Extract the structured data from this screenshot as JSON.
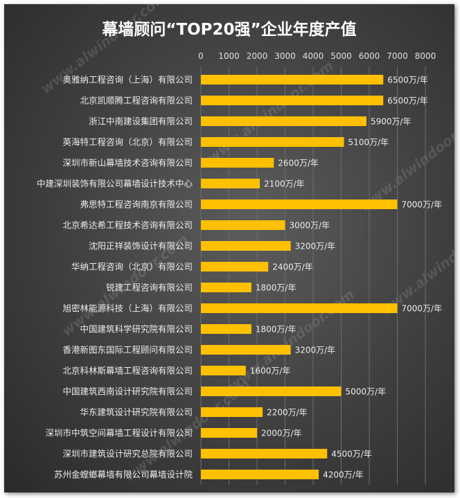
{
  "watermark": "www.alwindoor.com",
  "chart_data": {
    "type": "bar",
    "orientation": "horizontal",
    "title": "幕墙顾问“TOP20强”企业年度产值",
    "xlim": [
      0,
      8000
    ],
    "xticks": [
      0,
      1000,
      2000,
      3000,
      4000,
      5000,
      6000,
      7000,
      8000
    ],
    "grid": true,
    "bar_color": "#ffc000",
    "unit_suffix": "万/年",
    "categories": [
      "奥雅纳工程咨询（上海）有限公司",
      "北京凯顺腾工程咨询有限公司",
      "浙江中南建设集团有限公司",
      "英海特工程咨询（北京）有限公司",
      "深圳市新山幕墙技术咨询有限公司",
      "中建深圳装饰有限公司幕墙设计技术中心",
      "弗思特工程咨询南京有限公司",
      "北京希达希工程技术咨询有限公司",
      "沈阳正祥装饰设计有限公司",
      "华纳工程咨询（北京）有限公司",
      "锐建工程咨询有限公司",
      "旭密林能源科技（上海）有限公司",
      "中国建筑科学研究院有限公司",
      "香港新图东国际工程顾问有限公司",
      "北京科林斯幕墙工程咨询有限公司",
      "中国建筑西南设计研究院有限公司",
      "华东建筑设计研究院有限公司",
      "深圳市中筑空间幕墙工程设计有限公司",
      "深圳市建筑设计研究总院有限公司",
      "苏州金螳螂幕墙有限公司幕墙设计院"
    ],
    "values": [
      6500,
      6500,
      5900,
      5100,
      2600,
      2100,
      7000,
      3000,
      3200,
      2400,
      1800,
      7000,
      1800,
      3200,
      1600,
      5000,
      2200,
      2000,
      4500,
      4200
    ],
    "data_labels": [
      "6500万/年",
      "6500万/年",
      "5900万/年",
      "5100万/年",
      "2600万/年",
      "2100万/年",
      "7000万/年",
      "3000万/年",
      "3200万/年",
      "2400万/年",
      "1800万/年",
      "7000万/年",
      "1800万/年",
      "3200万/年",
      "1600万/年",
      "5000万/年",
      "2200万/年",
      "2000万/年",
      "4500万/年",
      "4200万/年"
    ]
  }
}
